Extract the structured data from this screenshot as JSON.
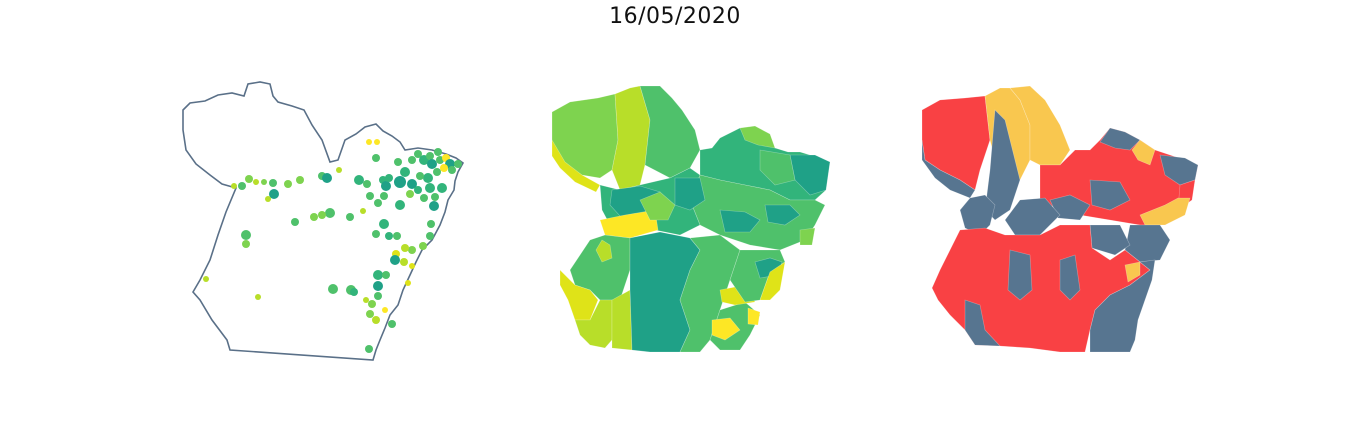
{
  "title": "16/05/2020",
  "colors": {
    "outline": "#5a7088",
    "viridis_dark": "#1fa187",
    "viridis_mid": "#32b47b",
    "viridis_green": "#4fc16b",
    "viridis_light": "#7ed34f",
    "viridis_lime": "#b8de29",
    "viridis_yellow": "#fde725",
    "viridis_yellow2": "#dfe318",
    "class_red": "#f94144",
    "class_slate": "#577590",
    "class_amber": "#f9c74f"
  },
  "panels": [
    {
      "name": "points-map",
      "style": "proportional-symbols"
    },
    {
      "name": "choropleth-map",
      "style": "viridis-choropleth"
    },
    {
      "name": "classification-map",
      "style": "three-class-choropleth"
    }
  ]
}
